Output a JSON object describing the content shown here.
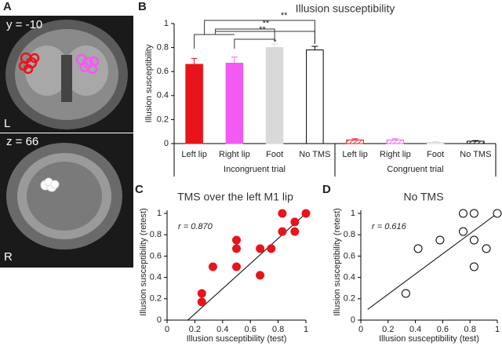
{
  "panel_a": {
    "label": "A",
    "top_slice": "y = -10",
    "top_side": "L",
    "bottom_slice": "z = 66",
    "bottom_side": "R"
  },
  "chart_data": [
    {
      "type": "bar",
      "panel": "B",
      "title": "Illusion susceptibility",
      "ylabel": "Illusion susceptibility",
      "categories": [
        "Left lip",
        "Right lip",
        "Foot",
        "No TMS",
        "Left lip",
        "Right lip",
        "Foot",
        "No TMS"
      ],
      "groups": [
        "Incongruent trial",
        "Congruent trial"
      ],
      "values": [
        0.66,
        0.67,
        0.8,
        0.78,
        0.03,
        0.03,
        0.01,
        0.02
      ],
      "errors": [
        0.05,
        0.05,
        0.03,
        0.03,
        0.01,
        0.01,
        0.005,
        0.005
      ],
      "colors": [
        "#e8141c",
        "#f25af2",
        "#d9d9d9",
        "#ffffff",
        "#e8141c",
        "#f25af2",
        "#d9d9d9",
        "#ffffff"
      ],
      "hatched": [
        false,
        false,
        false,
        false,
        true,
        true,
        true,
        true
      ],
      "annotations": [
        "**",
        "**",
        "*",
        "**"
      ],
      "ylim": [
        0,
        1
      ],
      "yticks": [
        0,
        0.2,
        0.4,
        0.6,
        0.8,
        1
      ]
    },
    {
      "type": "scatter",
      "panel": "C",
      "title": "TMS over the left M1 lip",
      "annotation": "r = 0.870",
      "xlabel": "Illusion susceptibility (test)",
      "ylabel": "Illusion susceptibility (retest)",
      "color": "#e8141c",
      "filled": true,
      "x": [
        0.25,
        0.25,
        0.33,
        0.5,
        0.5,
        0.5,
        0.67,
        0.67,
        0.75,
        0.83,
        0.83,
        0.92,
        0.92,
        1
      ],
      "y": [
        0.17,
        0.25,
        0.5,
        0.5,
        0.67,
        0.75,
        0.42,
        0.67,
        0.67,
        0.83,
        1,
        0.83,
        0.92,
        1
      ],
      "fit_line": {
        "x": [
          0.15,
          1
        ],
        "y": [
          0,
          1
        ]
      },
      "xlim": [
        0,
        1
      ],
      "ylim": [
        0,
        1
      ],
      "xticks": [
        0,
        0.2,
        0.4,
        0.6,
        0.8,
        1
      ],
      "yticks": [
        0,
        0.2,
        0.4,
        0.6,
        0.8,
        1
      ]
    },
    {
      "type": "scatter",
      "panel": "D",
      "title": "No TMS",
      "annotation": "r = 0.616",
      "xlabel": "Illusion susceptibility (test)",
      "ylabel": "Illusion susceptibility (retest)",
      "color": "#000000",
      "filled": false,
      "x": [
        0.33,
        0.42,
        0.58,
        0.75,
        0.75,
        0.83,
        0.83,
        0.83,
        0.92,
        1
      ],
      "y": [
        0.25,
        0.67,
        0.75,
        0.83,
        1,
        1,
        0.75,
        0.5,
        0.67,
        1
      ],
      "fit_line": {
        "x": [
          0.05,
          1
        ],
        "y": [
          0.1,
          1
        ]
      },
      "xlim": [
        0,
        1
      ],
      "ylim": [
        0,
        1
      ],
      "xticks": [
        0,
        0.2,
        0.4,
        0.6,
        0.8,
        1
      ],
      "yticks": [
        0,
        0.2,
        0.4,
        0.6,
        0.8,
        1
      ]
    }
  ]
}
